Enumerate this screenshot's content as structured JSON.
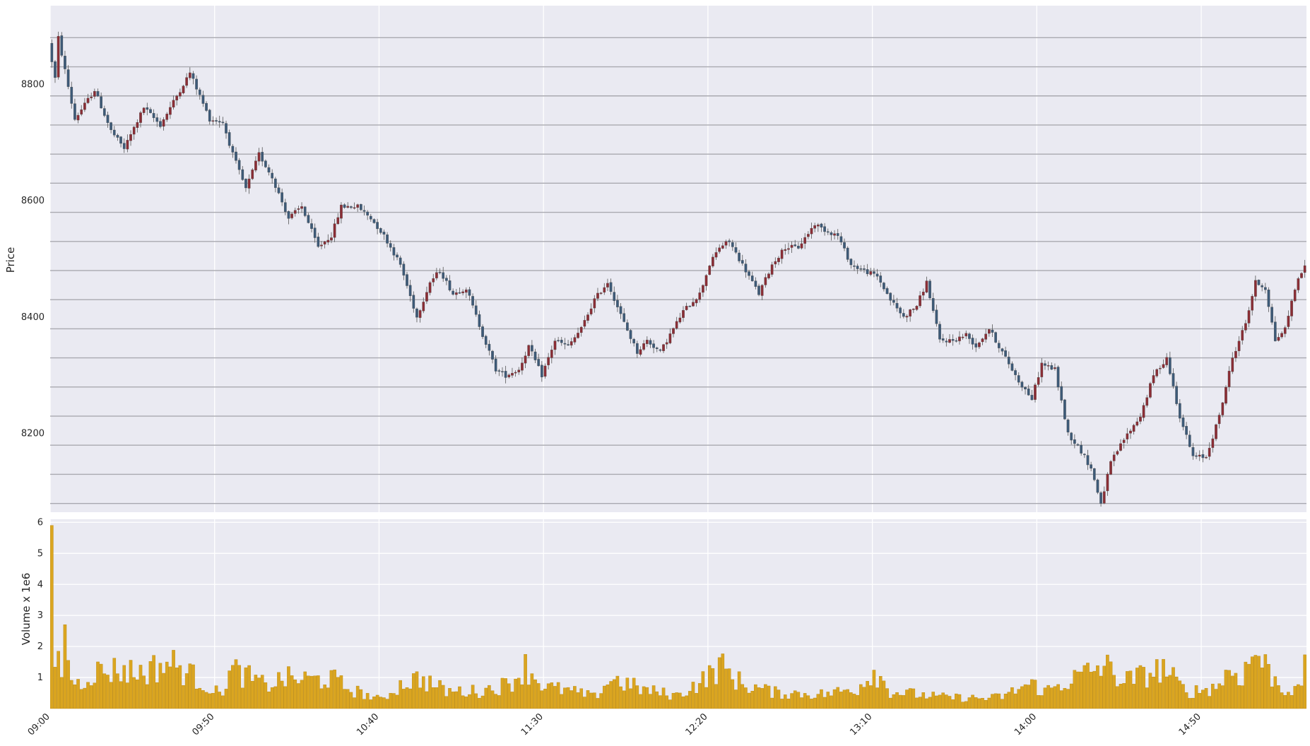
{
  "chart_data": [
    {
      "type": "candlestick",
      "ylabel": "Price",
      "ylim": [
        8065,
        8935
      ],
      "yticks": [
        8200,
        8400,
        8600,
        8800
      ],
      "hlines": [
        8080,
        8130,
        8180,
        8230,
        8280,
        8330,
        8380,
        8430,
        8480,
        8530,
        8580,
        8630,
        8680,
        8730,
        8780,
        8830,
        8880
      ],
      "grid": true,
      "up_color": "#8b2d35",
      "down_color": "#3d5a78",
      "start_time": "09:00",
      "interval_minutes": 1,
      "anchors": [
        [
          "09:00",
          8870
        ],
        [
          "09:02",
          8810
        ],
        [
          "09:03",
          8880
        ],
        [
          "09:08",
          8740
        ],
        [
          "09:14",
          8790
        ],
        [
          "09:19",
          8720
        ],
        [
          "09:23",
          8690
        ],
        [
          "09:29",
          8760
        ],
        [
          "09:34",
          8730
        ],
        [
          "09:43",
          8820
        ],
        [
          "09:49",
          8740
        ],
        [
          "09:53",
          8735
        ],
        [
          "09:56",
          8680
        ],
        [
          "10:00",
          8620
        ],
        [
          "10:04",
          8680
        ],
        [
          "10:08",
          8640
        ],
        [
          "10:13",
          8570
        ],
        [
          "10:17",
          8590
        ],
        [
          "10:22",
          8520
        ],
        [
          "10:26",
          8540
        ],
        [
          "10:29",
          8590
        ],
        [
          "10:34",
          8590
        ],
        [
          "10:38",
          8570
        ],
        [
          "10:42",
          8540
        ],
        [
          "10:47",
          8490
        ],
        [
          "10:52",
          8400
        ],
        [
          "10:56",
          8460
        ],
        [
          "10:59",
          8480
        ],
        [
          "11:03",
          8440
        ],
        [
          "11:07",
          8450
        ],
        [
          "11:12",
          8370
        ],
        [
          "11:16",
          8310
        ],
        [
          "11:19",
          8300
        ],
        [
          "11:23",
          8310
        ],
        [
          "11:26",
          8350
        ],
        [
          "11:30",
          8300
        ],
        [
          "11:34",
          8360
        ],
        [
          "11:38",
          8350
        ],
        [
          "11:42",
          8380
        ],
        [
          "11:46",
          8430
        ],
        [
          "11:50",
          8460
        ],
        [
          "11:55",
          8390
        ],
        [
          "11:59",
          8340
        ],
        [
          "12:02",
          8360
        ],
        [
          "12:06",
          8340
        ],
        [
          "12:10",
          8380
        ],
        [
          "12:13",
          8410
        ],
        [
          "12:18",
          8440
        ],
        [
          "12:21",
          8490
        ],
        [
          "12:24",
          8520
        ],
        [
          "12:27",
          8530
        ],
        [
          "12:32",
          8480
        ],
        [
          "12:36",
          8440
        ],
        [
          "12:40",
          8490
        ],
        [
          "12:44",
          8520
        ],
        [
          "12:48",
          8520
        ],
        [
          "12:53",
          8560
        ],
        [
          "12:56",
          8550
        ],
        [
          "13:00",
          8540
        ],
        [
          "13:04",
          8490
        ],
        [
          "13:08",
          8480
        ],
        [
          "13:12",
          8470
        ],
        [
          "13:16",
          8430
        ],
        [
          "13:20",
          8400
        ],
        [
          "13:24",
          8420
        ],
        [
          "13:27",
          8460
        ],
        [
          "13:31",
          8360
        ],
        [
          "13:35",
          8360
        ],
        [
          "13:39",
          8370
        ],
        [
          "13:42",
          8350
        ],
        [
          "13:46",
          8380
        ],
        [
          "13:50",
          8340
        ],
        [
          "13:55",
          8290
        ],
        [
          "13:59",
          8260
        ],
        [
          "14:02",
          8320
        ],
        [
          "14:06",
          8310
        ],
        [
          "14:10",
          8200
        ],
        [
          "14:14",
          8170
        ],
        [
          "14:17",
          8140
        ],
        [
          "14:20",
          8080
        ],
        [
          "14:23",
          8150
        ],
        [
          "14:27",
          8190
        ],
        [
          "14:32",
          8230
        ],
        [
          "14:36",
          8300
        ],
        [
          "14:40",
          8330
        ],
        [
          "14:44",
          8230
        ],
        [
          "14:48",
          8160
        ],
        [
          "14:52",
          8160
        ],
        [
          "14:56",
          8230
        ],
        [
          "15:00",
          8330
        ],
        [
          "15:04",
          8390
        ],
        [
          "15:07",
          8460
        ],
        [
          "15:10",
          8450
        ],
        [
          "15:13",
          8360
        ],
        [
          "15:16",
          8380
        ],
        [
          "15:19",
          8450
        ],
        [
          "15:22",
          8490
        ]
      ],
      "x_tick_labels": [
        "09:00",
        "09:50",
        "10:40",
        "11:30",
        "12:20",
        "13:10",
        "14:00",
        "14:50"
      ]
    },
    {
      "type": "bar",
      "ylabel": "Volume x 1e6",
      "ylim": [
        0,
        6.1
      ],
      "yticks": [
        1,
        2,
        3,
        4,
        5,
        6
      ],
      "bar_color": "#daa520",
      "first_volume": 5.9,
      "anchors": [
        [
          "09:01",
          1.7
        ],
        [
          "09:03",
          1.5
        ],
        [
          "09:04",
          2.45
        ],
        [
          "09:06",
          1.1
        ],
        [
          "09:08",
          0.85
        ],
        [
          "09:12",
          1.25
        ],
        [
          "09:16",
          1.3
        ],
        [
          "09:20",
          1.35
        ],
        [
          "09:27",
          1.25
        ],
        [
          "09:36",
          1.6
        ],
        [
          "09:42",
          1.2
        ],
        [
          "09:51",
          0.5
        ],
        [
          "09:55",
          1.35
        ],
        [
          "10:05",
          0.8
        ],
        [
          "10:11",
          1.05
        ],
        [
          "10:20",
          1.0
        ],
        [
          "10:25",
          1.05
        ],
        [
          "10:30",
          0.7
        ],
        [
          "10:40",
          0.3
        ],
        [
          "10:47",
          0.9
        ],
        [
          "10:52",
          1.05
        ],
        [
          "11:00",
          0.6
        ],
        [
          "11:10",
          0.6
        ],
        [
          "11:19",
          0.85
        ],
        [
          "11:24",
          1.45
        ],
        [
          "11:30",
          0.75
        ],
        [
          "11:38",
          0.6
        ],
        [
          "11:45",
          0.4
        ],
        [
          "11:50",
          1.05
        ],
        [
          "12:00",
          0.65
        ],
        [
          "12:10",
          0.45
        ],
        [
          "12:19",
          1.05
        ],
        [
          "12:23",
          1.5
        ],
        [
          "12:30",
          0.85
        ],
        [
          "12:40",
          0.55
        ],
        [
          "12:55",
          0.5
        ],
        [
          "13:05",
          0.7
        ],
        [
          "13:10",
          1.35
        ],
        [
          "13:15",
          0.6
        ],
        [
          "13:30",
          0.4
        ],
        [
          "13:45",
          0.35
        ],
        [
          "13:50",
          0.45
        ],
        [
          "13:55",
          0.75
        ],
        [
          "13:58",
          0.85
        ],
        [
          "14:02",
          0.6
        ],
        [
          "14:08",
          0.9
        ],
        [
          "14:14",
          1.2
        ],
        [
          "14:17",
          1.35
        ],
        [
          "14:20",
          1.5
        ],
        [
          "14:26",
          0.95
        ],
        [
          "14:32",
          1.15
        ],
        [
          "14:38",
          1.4
        ],
        [
          "14:45",
          0.55
        ],
        [
          "14:54",
          0.75
        ],
        [
          "14:58",
          1.3
        ],
        [
          "15:02",
          1.15
        ],
        [
          "15:06",
          2.0
        ],
        [
          "15:10",
          1.3
        ],
        [
          "15:14",
          0.7
        ],
        [
          "15:19",
          0.6
        ],
        [
          "15:21",
          1.35
        ],
        [
          "15:22",
          1.9
        ],
        [
          "15:23",
          0.85
        ]
      ]
    }
  ]
}
